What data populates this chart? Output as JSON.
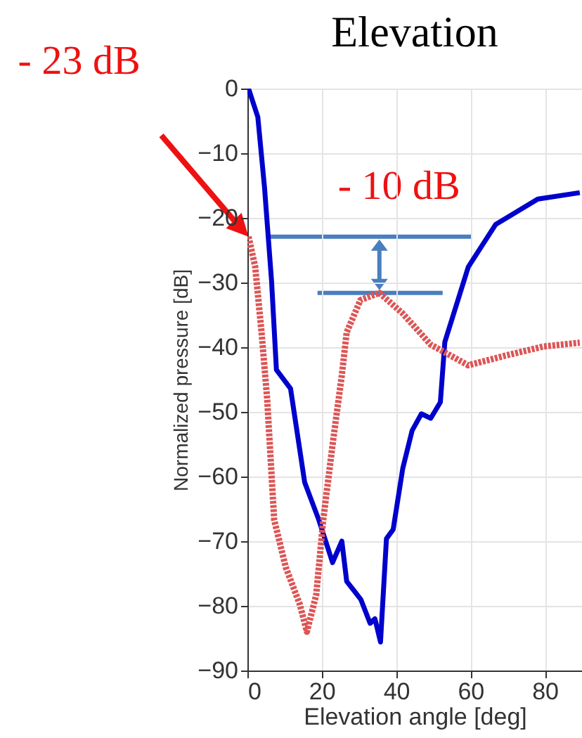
{
  "chart_data": {
    "type": "line",
    "title": "Elevation",
    "xlabel": "Elevation angle [deg]",
    "ylabel": "Normalized pressure [dB]",
    "xlim": [
      0,
      90
    ],
    "xticks": [
      0,
      20,
      40,
      60,
      80
    ],
    "ylim": [
      -90,
      0
    ],
    "yticks": [
      -90,
      -80,
      -70,
      -60,
      -50,
      -40,
      -30,
      -20,
      -10,
      0
    ],
    "grid": true,
    "series": [
      {
        "color": "#0000cc",
        "x": [
          0.3,
          2.8,
          4.6,
          6.5,
          7.8,
          11.6,
          15.4,
          19.2,
          22.9,
          25.4,
          26.7,
          30.5,
          33,
          34.3,
          35.8,
          37.4,
          39.2,
          41.8,
          44.3,
          46.8,
          49.3,
          51.9,
          53.1,
          59.4,
          66.8,
          78.1,
          89.4
        ],
        "values": [
          0,
          -4.4,
          -15.3,
          -29.8,
          -43.5,
          -46.4,
          -60.9,
          -66.7,
          -73.3,
          -70,
          -76.2,
          -79,
          -82.7,
          -82,
          -85.6,
          -69.6,
          -68.2,
          -58.7,
          -52.9,
          -50.3,
          -51,
          -48.5,
          -39.2,
          -27.6,
          -21,
          -17.1,
          -16.1
        ],
        "line_style": "solid"
      },
      {
        "color": "#dd5555",
        "x": [
          0.3,
          2.1,
          3.8,
          5.3,
          7.2,
          10.3,
          14.1,
          16,
          18.5,
          20.4,
          22.9,
          25.4,
          26.7,
          30.4,
          35.5,
          41.8,
          49.3,
          59.4,
          69.4,
          79.5,
          89.4
        ],
        "values": [
          -22.9,
          -27.6,
          -37.7,
          -47.9,
          -66.7,
          -74,
          -79.8,
          -84,
          -78.3,
          -66.7,
          -55.1,
          -44.3,
          -37.7,
          -32.7,
          -31.6,
          -34.8,
          -39.6,
          -42.8,
          -41.3,
          -39.9,
          -39.3
        ],
        "line_style": "dotted"
      }
    ],
    "annotations": [
      "- 23 dB",
      {
        "text": "- 10 dB",
        "x": 35.5,
        "y": -31.6
      }
    ]
  }
}
